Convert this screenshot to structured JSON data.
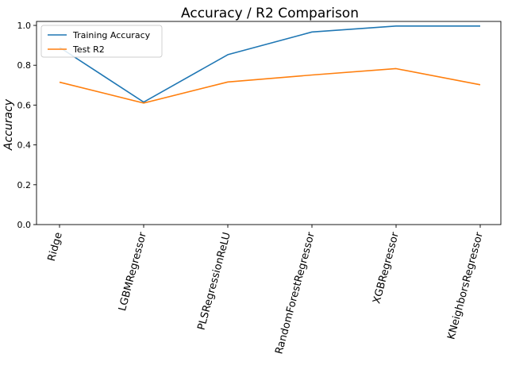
{
  "chart_data": {
    "type": "line",
    "title": "Accuracy / R2 Comparison",
    "xlabel": "",
    "ylabel": "Accuracy",
    "categories": [
      "Ridge",
      "LGBMRegressor",
      "PLSRegressionReLU",
      "RandomForestRegressor",
      "XGBRegressor",
      "KNeighborsRegressor"
    ],
    "series": [
      {
        "name": "Training Accuracy",
        "color": "#1f77b4",
        "values": [
          0.89,
          0.615,
          0.853,
          0.967,
          0.997,
          0.997
        ]
      },
      {
        "name": "Test R2",
        "color": "#ff7f0e",
        "values": [
          0.715,
          0.61,
          0.716,
          0.751,
          0.783,
          0.702
        ]
      }
    ],
    "ylim": [
      0,
      1.02
    ],
    "yticks": [
      0.0,
      0.2,
      0.4,
      0.6,
      0.8,
      1.0
    ],
    "ytick_labels": [
      "0.0",
      "0.2",
      "0.4",
      "0.6",
      "0.8",
      "1.0"
    ],
    "grid": false,
    "legend_position": "top-left"
  }
}
